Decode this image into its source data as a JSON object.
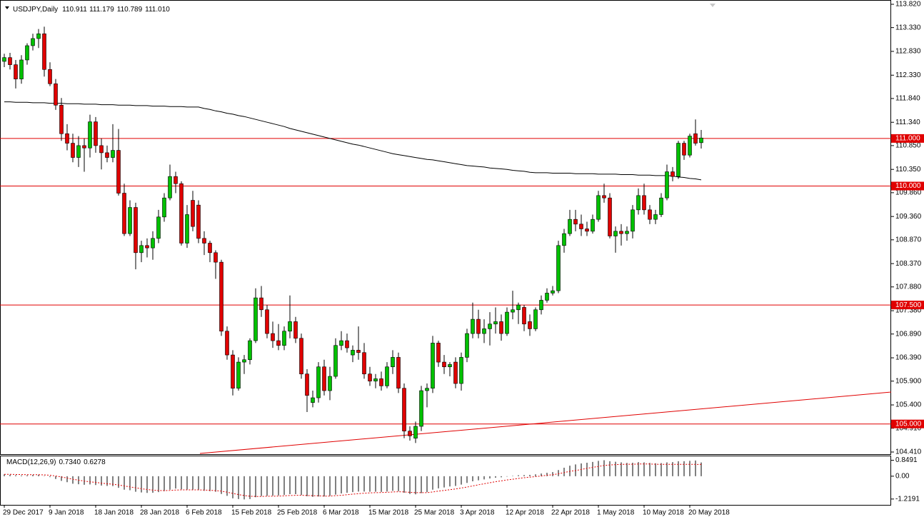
{
  "chart_data": {
    "type": "candlestick",
    "header": [
      "USDJPY,Daily",
      "110.911",
      "111.179",
      "110.789",
      "111.010"
    ],
    "up_color": "#00c000",
    "down_color": "#e00000",
    "ma_color": "#000000",
    "ylim": [
      104.365,
      113.91
    ],
    "yticks": [
      {
        "value": 113.82,
        "label": "113.820"
      },
      {
        "value": 113.33,
        "label": "113.330"
      },
      {
        "value": 112.83,
        "label": "112.830"
      },
      {
        "value": 112.33,
        "label": "112.330"
      },
      {
        "value": 111.84,
        "label": "111.840"
      },
      {
        "value": 111.34,
        "label": "111.340"
      },
      {
        "value": 110.85,
        "label": "110.850"
      },
      {
        "value": 110.35,
        "label": "110.350"
      },
      {
        "value": 109.86,
        "label": "109.860"
      },
      {
        "value": 109.36,
        "label": "109.360"
      },
      {
        "value": 108.87,
        "label": "108.870"
      },
      {
        "value": 108.37,
        "label": "108.370"
      },
      {
        "value": 107.88,
        "label": "107.880"
      },
      {
        "value": 107.38,
        "label": "107.380"
      },
      {
        "value": 106.89,
        "label": "106.890"
      },
      {
        "value": 106.39,
        "label": "106.390"
      },
      {
        "value": 105.9,
        "label": "105.900"
      },
      {
        "value": 105.4,
        "label": "105.400"
      },
      {
        "value": 104.91,
        "label": "104.910"
      },
      {
        "value": 104.41,
        "label": "104.410"
      }
    ],
    "levels": [
      {
        "value": 111,
        "label": "111.000"
      },
      {
        "value": 110,
        "label": "110.000"
      },
      {
        "value": 107.5,
        "label": "107.500"
      },
      {
        "value": 105,
        "label": "105.000"
      }
    ],
    "categories": [
      "29 Dec 2017",
      null,
      null,
      null,
      null,
      null,
      null,
      null,
      "9 Jan 2018",
      null,
      null,
      null,
      null,
      null,
      null,
      null,
      "18 Jan 2018",
      null,
      null,
      null,
      null,
      null,
      null,
      null,
      "28 Jan 2018",
      null,
      null,
      null,
      null,
      null,
      null,
      null,
      "6 Feb 2018",
      null,
      null,
      null,
      null,
      null,
      null,
      null,
      "15 Feb 2018",
      null,
      null,
      null,
      null,
      null,
      null,
      null,
      "25 Feb 2018",
      null,
      null,
      null,
      null,
      null,
      null,
      null,
      "6 Mar 2018",
      null,
      null,
      null,
      null,
      null,
      null,
      null,
      "15 Mar 2018",
      null,
      null,
      null,
      null,
      null,
      null,
      null,
      "25 Mar 2018",
      null,
      null,
      null,
      null,
      null,
      null,
      null,
      "3 Apr 2018",
      null,
      null,
      null,
      null,
      null,
      null,
      null,
      "12 Apr 2018",
      null,
      null,
      null,
      null,
      null,
      null,
      null,
      "22 Apr 2018",
      null,
      null,
      null,
      null,
      null,
      null,
      null,
      "1 May 2018",
      null,
      null,
      null,
      null,
      null,
      null,
      null,
      "10 May 2018",
      null,
      null,
      null,
      null,
      null,
      null,
      null,
      "20 May 2018",
      null,
      null
    ],
    "ohlc": [
      [
        112.62,
        112.78,
        112.5,
        112.7
      ],
      [
        112.7,
        112.8,
        112.45,
        112.55
      ],
      [
        112.55,
        112.65,
        112.05,
        112.25
      ],
      [
        112.25,
        112.75,
        112.15,
        112.65
      ],
      [
        112.65,
        113.0,
        112.55,
        112.95
      ],
      [
        112.95,
        113.2,
        112.85,
        113.1
      ],
      [
        113.1,
        113.3,
        112.9,
        113.2
      ],
      [
        113.2,
        113.35,
        112.3,
        112.45
      ],
      [
        112.45,
        112.6,
        112.1,
        112.15
      ],
      [
        112.15,
        112.25,
        111.6,
        111.7
      ],
      [
        111.7,
        111.85,
        110.95,
        111.1
      ],
      [
        111.1,
        111.3,
        110.75,
        110.9
      ],
      [
        110.9,
        111.1,
        110.5,
        110.6
      ],
      [
        110.6,
        111.05,
        110.4,
        110.85
      ],
      [
        110.85,
        111.0,
        110.3,
        110.8
      ],
      [
        110.8,
        111.5,
        110.6,
        111.35
      ],
      [
        111.35,
        111.45,
        110.7,
        110.85
      ],
      [
        110.85,
        111.0,
        110.35,
        110.7
      ],
      [
        110.7,
        110.85,
        110.5,
        110.6
      ],
      [
        110.6,
        111.3,
        110.5,
        110.75
      ],
      [
        110.75,
        111.2,
        109.8,
        109.85
      ],
      [
        109.85,
        110.05,
        108.95,
        109.0
      ],
      [
        109.0,
        109.7,
        108.95,
        109.55
      ],
      [
        109.55,
        109.65,
        108.25,
        108.6
      ],
      [
        108.6,
        108.85,
        108.4,
        108.75
      ],
      [
        108.75,
        108.9,
        108.5,
        108.7
      ],
      [
        108.7,
        109.05,
        108.45,
        108.9
      ],
      [
        108.9,
        109.5,
        108.8,
        109.35
      ],
      [
        109.35,
        109.85,
        109.25,
        109.75
      ],
      [
        109.75,
        110.45,
        109.7,
        110.2
      ],
      [
        110.2,
        110.3,
        109.85,
        110.05
      ],
      [
        110.05,
        110.1,
        108.75,
        108.8
      ],
      [
        108.8,
        109.6,
        108.7,
        109.4
      ],
      [
        109.7,
        109.9,
        109.05,
        109.15
      ],
      [
        109.6,
        109.7,
        108.8,
        108.9
      ],
      [
        108.9,
        109.05,
        108.55,
        108.8
      ],
      [
        108.8,
        108.85,
        108.4,
        108.6
      ],
      [
        108.6,
        108.65,
        108.05,
        108.4
      ],
      [
        108.4,
        108.45,
        106.85,
        106.95
      ],
      [
        106.95,
        107.05,
        106.35,
        106.45
      ],
      [
        106.45,
        106.55,
        105.6,
        105.75
      ],
      [
        105.75,
        106.4,
        105.7,
        106.3
      ],
      [
        106.3,
        106.45,
        106.05,
        106.35
      ],
      [
        106.35,
        106.8,
        106.25,
        106.75
      ],
      [
        106.75,
        107.85,
        106.7,
        107.65
      ],
      [
        107.65,
        107.9,
        107.25,
        107.4
      ],
      [
        107.4,
        107.5,
        106.8,
        106.9
      ],
      [
        106.9,
        107.15,
        106.6,
        106.75
      ],
      [
        106.75,
        107.1,
        106.55,
        106.65
      ],
      [
        106.65,
        107.05,
        106.55,
        106.95
      ],
      [
        106.95,
        107.7,
        106.8,
        107.15
      ],
      [
        107.15,
        107.25,
        106.7,
        106.8
      ],
      [
        106.8,
        106.9,
        105.95,
        106.05
      ],
      [
        106.05,
        106.15,
        105.25,
        105.6
      ],
      [
        105.45,
        105.7,
        105.35,
        105.55
      ],
      [
        105.55,
        106.3,
        105.45,
        106.2
      ],
      [
        106.2,
        106.35,
        105.6,
        105.7
      ],
      [
        105.7,
        106.2,
        105.5,
        106.0
      ],
      [
        106.0,
        106.8,
        105.95,
        106.65
      ],
      [
        106.65,
        106.95,
        106.55,
        106.75
      ],
      [
        106.75,
        106.9,
        106.5,
        106.6
      ],
      [
        106.45,
        106.65,
        106.3,
        106.55
      ],
      [
        106.55,
        107.05,
        106.35,
        106.5
      ],
      [
        106.5,
        106.7,
        105.95,
        106.05
      ],
      [
        106.05,
        106.2,
        105.8,
        105.9
      ],
      [
        105.9,
        106.05,
        105.75,
        105.95
      ],
      [
        105.95,
        106.1,
        105.7,
        105.8
      ],
      [
        105.8,
        106.3,
        105.75,
        106.2
      ],
      [
        106.2,
        106.55,
        106.05,
        106.4
      ],
      [
        106.4,
        106.5,
        105.65,
        105.75
      ],
      [
        105.75,
        105.85,
        104.7,
        104.85
      ],
      [
        104.85,
        104.95,
        104.65,
        104.75
      ],
      [
        104.7,
        105.05,
        104.6,
        104.95
      ],
      [
        104.95,
        105.8,
        104.85,
        105.7
      ],
      [
        105.7,
        105.85,
        105.35,
        105.75
      ],
      [
        105.75,
        106.85,
        105.65,
        106.7
      ],
      [
        106.7,
        106.75,
        106.2,
        106.3
      ],
      [
        106.3,
        106.45,
        106.05,
        106.2
      ],
      [
        106.2,
        106.3,
        106.0,
        106.25
      ],
      [
        106.3,
        106.4,
        105.75,
        105.85
      ],
      [
        105.85,
        106.5,
        105.7,
        106.4
      ],
      [
        106.4,
        107.0,
        106.3,
        106.9
      ],
      [
        106.9,
        107.55,
        106.8,
        107.2
      ],
      [
        107.2,
        107.4,
        106.8,
        106.9
      ],
      [
        106.9,
        107.2,
        106.7,
        107.0
      ],
      [
        107.0,
        107.35,
        106.65,
        107.1
      ],
      [
        107.1,
        107.45,
        106.9,
        107.15
      ],
      [
        107.15,
        107.3,
        106.75,
        106.9
      ],
      [
        106.9,
        107.45,
        106.85,
        107.35
      ],
      [
        107.35,
        107.8,
        107.2,
        107.4
      ],
      [
        107.4,
        107.55,
        107.1,
        107.5
      ],
      [
        107.45,
        107.5,
        106.95,
        107.1
      ],
      [
        107.15,
        107.3,
        106.85,
        107.0
      ],
      [
        107.0,
        107.45,
        106.95,
        107.4
      ],
      [
        107.4,
        107.7,
        107.3,
        107.6
      ],
      [
        107.6,
        107.85,
        107.55,
        107.75
      ],
      [
        107.75,
        107.9,
        107.7,
        107.8
      ],
      [
        107.8,
        108.85,
        107.75,
        108.75
      ],
      [
        108.75,
        109.1,
        108.6,
        109.0
      ],
      [
        109.0,
        109.5,
        108.95,
        109.3
      ],
      [
        109.3,
        109.5,
        109.05,
        109.2
      ],
      [
        109.2,
        109.4,
        108.95,
        109.1
      ],
      [
        109.1,
        109.25,
        108.95,
        109.05
      ],
      [
        109.05,
        109.4,
        109.0,
        109.3
      ],
      [
        109.3,
        109.9,
        109.25,
        109.8
      ],
      [
        109.8,
        110.05,
        109.65,
        109.75
      ],
      [
        109.75,
        109.85,
        108.9,
        108.95
      ],
      [
        108.95,
        109.15,
        108.6,
        109.05
      ],
      [
        109.05,
        109.2,
        108.75,
        109.0
      ],
      [
        109.0,
        109.15,
        108.85,
        109.05
      ],
      [
        109.05,
        109.6,
        108.9,
        109.5
      ],
      [
        109.5,
        109.95,
        109.4,
        109.8
      ],
      [
        109.8,
        110.05,
        109.4,
        109.5
      ],
      [
        109.5,
        109.6,
        109.2,
        109.3
      ],
      [
        109.3,
        109.5,
        109.2,
        109.4
      ],
      [
        109.4,
        109.85,
        109.35,
        109.75
      ],
      [
        109.75,
        110.45,
        109.7,
        110.3
      ],
      [
        110.3,
        110.4,
        110.1,
        110.2
      ],
      [
        110.2,
        110.95,
        110.15,
        110.9
      ],
      [
        110.9,
        110.95,
        110.55,
        110.65
      ],
      [
        110.65,
        111.1,
        110.6,
        111.05
      ],
      [
        111.1,
        111.4,
        110.85,
        110.9
      ],
      [
        110.911,
        111.179,
        110.789,
        111.01
      ]
    ],
    "ma": [
      111.77,
      111.77,
      111.76,
      111.76,
      111.76,
      111.75,
      111.75,
      111.75,
      111.74,
      111.74,
      111.74,
      111.73,
      111.73,
      111.73,
      111.72,
      111.72,
      111.72,
      111.71,
      111.71,
      111.71,
      111.7,
      111.7,
      111.7,
      111.69,
      111.69,
      111.69,
      111.68,
      111.68,
      111.68,
      111.67,
      111.67,
      111.67,
      111.66,
      111.66,
      111.66,
      111.63,
      111.61,
      111.58,
      111.56,
      111.53,
      111.51,
      111.48,
      111.46,
      111.43,
      111.4,
      111.37,
      111.34,
      111.31,
      111.28,
      111.25,
      111.21,
      111.18,
      111.15,
      111.12,
      111.09,
      111.06,
      111.03,
      111.0,
      110.97,
      110.94,
      110.91,
      110.88,
      110.86,
      110.83,
      110.8,
      110.77,
      110.74,
      110.71,
      110.68,
      110.66,
      110.64,
      110.62,
      110.6,
      110.58,
      110.56,
      110.55,
      110.53,
      110.51,
      110.49,
      110.47,
      110.45,
      110.43,
      110.42,
      110.41,
      110.4,
      110.38,
      110.37,
      110.36,
      110.35,
      110.33,
      110.32,
      110.31,
      110.29,
      110.28,
      110.28,
      110.28,
      110.27,
      110.27,
      110.27,
      110.27,
      110.26,
      110.26,
      110.26,
      110.26,
      110.25,
      110.25,
      110.25,
      110.25,
      110.24,
      110.24,
      110.24,
      110.23,
      110.23,
      110.23,
      110.22,
      110.22,
      110.22,
      110.21,
      110.19,
      110.18,
      110.16,
      110.15,
      110.13
    ],
    "macd_label": [
      "MACD(12,26,9)",
      "0.7340",
      "0.6278"
    ],
    "macd_ylim": [
      -1.53,
      1.1
    ],
    "macd_yticks": [
      0.8491,
      {
        "value": 0,
        "label": "0.00"
      },
      -1.2191
    ],
    "macd_color": "#000000",
    "signal_color": "#e00000",
    "macd": [
      0.1,
      0.08,
      0.05,
      0.04,
      0.05,
      0.07,
      0.08,
      0.02,
      -0.05,
      -0.15,
      -0.25,
      -0.32,
      -0.4,
      -0.43,
      -0.46,
      -0.44,
      -0.47,
      -0.5,
      -0.52,
      -0.53,
      -0.62,
      -0.72,
      -0.75,
      -0.83,
      -0.87,
      -0.89,
      -0.88,
      -0.85,
      -0.8,
      -0.72,
      -0.66,
      -0.7,
      -0.71,
      -0.72,
      -0.75,
      -0.78,
      -0.8,
      -0.83,
      -0.95,
      -1.05,
      -1.18,
      -1.22,
      -1.24,
      -1.22,
      -1.12,
      -1.06,
      -1.05,
      -1.04,
      -1.03,
      -1.0,
      -0.96,
      -0.96,
      -1.0,
      -1.07,
      -1.1,
      -1.08,
      -1.08,
      -1.05,
      -0.98,
      -0.92,
      -0.88,
      -0.85,
      -0.82,
      -0.82,
      -0.83,
      -0.83,
      -0.84,
      -0.82,
      -0.78,
      -0.8,
      -0.88,
      -0.95,
      -0.97,
      -0.9,
      -0.85,
      -0.72,
      -0.65,
      -0.6,
      -0.55,
      -0.52,
      -0.45,
      -0.36,
      -0.27,
      -0.22,
      -0.17,
      -0.12,
      -0.08,
      -0.06,
      -0.02,
      0.02,
      0.05,
      0.06,
      0.07,
      0.1,
      0.14,
      0.18,
      0.22,
      0.33,
      0.45,
      0.56,
      0.63,
      0.68,
      0.72,
      0.76,
      0.82,
      0.85,
      0.8,
      0.77,
      0.74,
      0.71,
      0.72,
      0.75,
      0.74,
      0.71,
      0.69,
      0.7,
      0.74,
      0.75,
      0.8,
      0.8,
      0.82,
      0.84,
      0.734
    ],
    "signal": [
      0.1,
      0.1,
      0.09,
      0.09,
      0.08,
      0.08,
      0.08,
      0.07,
      0.05,
      0.01,
      -0.04,
      -0.1,
      -0.16,
      -0.21,
      -0.26,
      -0.3,
      -0.33,
      -0.37,
      -0.4,
      -0.43,
      -0.47,
      -0.52,
      -0.57,
      -0.62,
      -0.67,
      -0.71,
      -0.74,
      -0.76,
      -0.77,
      -0.76,
      -0.74,
      -0.73,
      -0.73,
      -0.73,
      -0.73,
      -0.74,
      -0.75,
      -0.77,
      -0.8,
      -0.85,
      -0.92,
      -0.98,
      -1.03,
      -1.07,
      -1.08,
      -1.08,
      -1.07,
      -1.07,
      -1.06,
      -1.05,
      -1.03,
      -1.02,
      -1.02,
      -1.03,
      -1.04,
      -1.05,
      -1.06,
      -1.06,
      -1.04,
      -1.02,
      -0.99,
      -0.96,
      -0.93,
      -0.91,
      -0.89,
      -0.88,
      -0.87,
      -0.86,
      -0.84,
      -0.83,
      -0.84,
      -0.86,
      -0.88,
      -0.88,
      -0.88,
      -0.84,
      -0.8,
      -0.76,
      -0.72,
      -0.68,
      -0.63,
      -0.58,
      -0.52,
      -0.46,
      -0.4,
      -0.35,
      -0.29,
      -0.25,
      -0.2,
      -0.16,
      -0.12,
      -0.08,
      -0.05,
      -0.02,
      0.01,
      0.05,
      0.08,
      0.13,
      0.19,
      0.26,
      0.3,
      0.36,
      0.42,
      0.47,
      0.52,
      0.57,
      0.6,
      0.62,
      0.63,
      0.64,
      0.64,
      0.65,
      0.65,
      0.65,
      0.64,
      0.63,
      0.63,
      0.63,
      0.63,
      0.63,
      0.63,
      0.63,
      0.6278
    ]
  }
}
